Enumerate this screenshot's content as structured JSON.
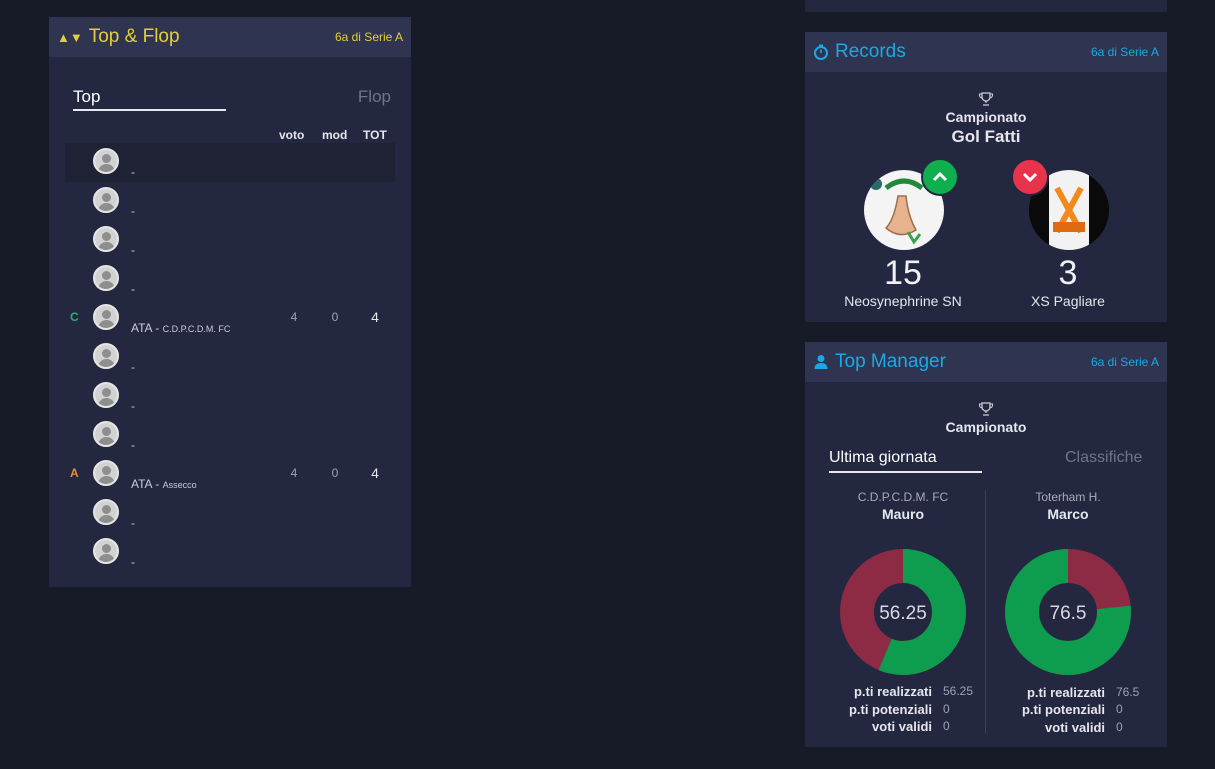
{
  "topflop": {
    "title": "Top & Flop",
    "subtitle": "6a di Serie A",
    "tabs": [
      "Top",
      "Flop"
    ],
    "columns": [
      "voto",
      "mod",
      "TOT"
    ],
    "rows": [
      {
        "role": "",
        "name": "-",
        "team": "",
        "voto": "",
        "mod": "",
        "tot": ""
      },
      {
        "role": "",
        "name": "-",
        "team": "",
        "voto": "",
        "mod": "",
        "tot": ""
      },
      {
        "role": "",
        "name": "-",
        "team": "",
        "voto": "",
        "mod": "",
        "tot": ""
      },
      {
        "role": "",
        "name": "-",
        "team": "",
        "voto": "",
        "mod": "",
        "tot": ""
      },
      {
        "role": "C",
        "name": "ATA - ",
        "team": "C.D.P.C.D.M. FC",
        "voto": "4",
        "mod": "0",
        "tot": "4"
      },
      {
        "role": "",
        "name": "-",
        "team": "",
        "voto": "",
        "mod": "",
        "tot": ""
      },
      {
        "role": "",
        "name": "-",
        "team": "",
        "voto": "",
        "mod": "",
        "tot": ""
      },
      {
        "role": "",
        "name": "-",
        "team": "",
        "voto": "",
        "mod": "",
        "tot": ""
      },
      {
        "role": "A",
        "name": "ATA - ",
        "team": "Assecco",
        "voto": "4",
        "mod": "0",
        "tot": "4"
      },
      {
        "role": "",
        "name": "-",
        "team": "",
        "voto": "",
        "mod": "",
        "tot": ""
      },
      {
        "role": "",
        "name": "-",
        "team": "",
        "voto": "",
        "mod": "",
        "tot": ""
      }
    ]
  },
  "records": {
    "title": "Records",
    "subtitle": "6a di Serie A",
    "competition": "Campionato",
    "category": "Gol Fatti",
    "best": {
      "value": "15",
      "team": "Neosynephrine SN"
    },
    "worst": {
      "value": "3",
      "team": "XS Pagliare"
    }
  },
  "topmanager": {
    "title": "Top Manager",
    "subtitle": "6a di Serie A",
    "competition": "Campionato",
    "tabs": [
      "Ultima giornata",
      "Classifiche"
    ],
    "managers": [
      {
        "team": "C.D.P.C.D.M. FC",
        "name": "Mauro",
        "score": "56.25",
        "realized": 56.25,
        "potential_total": 100,
        "stats": [
          {
            "label": "p.ti realizzati",
            "value": "56.25"
          },
          {
            "label": "p.ti potenziali",
            "value": "0"
          },
          {
            "label": "voti validi",
            "value": "0"
          }
        ]
      },
      {
        "team": "Toterham H.",
        "name": "Marco",
        "score": "76.5",
        "realized": 76.5,
        "potential_total": 100,
        "stats": [
          {
            "label": "p.ti realizzati",
            "value": "76.5"
          },
          {
            "label": "p.ti potenziali",
            "value": "0"
          },
          {
            "label": "voti validi",
            "value": "0"
          }
        ]
      }
    ]
  },
  "colors": {
    "accent_blue": "#1ba9e6",
    "accent_yellow": "#e2cf3b",
    "role_c": "#1db86b",
    "role_a": "#f08a2c",
    "donut_green": "#0e9d4e",
    "donut_red": "#8d2b45"
  }
}
